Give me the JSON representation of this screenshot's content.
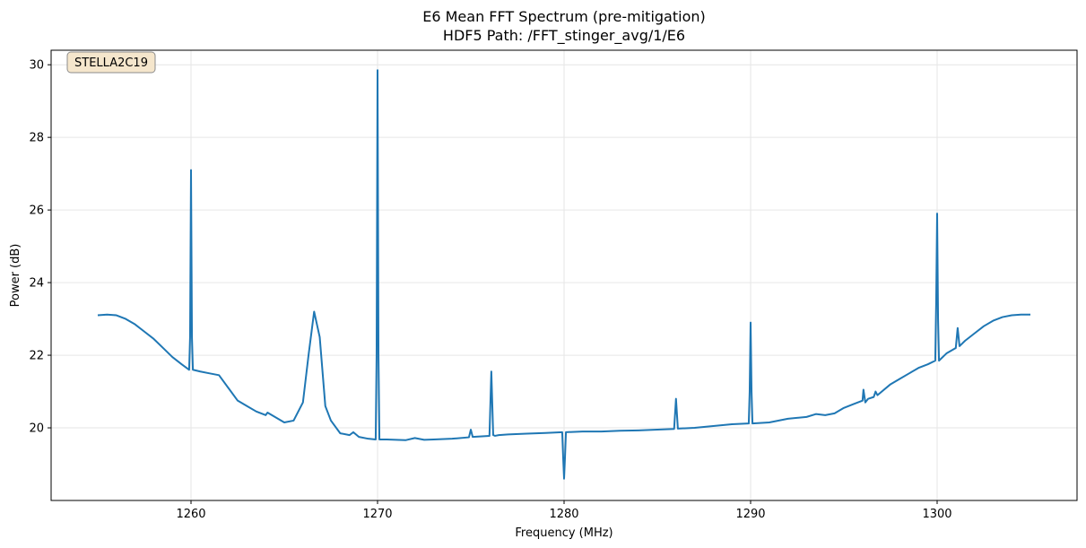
{
  "chart_data": {
    "type": "line",
    "title": "E6 Mean FFT Spectrum (pre-mitigation)",
    "subtitle": "HDF5 Path: /FFT_stinger_avg/1/E6",
    "xlabel": "Frequency (MHz)",
    "ylabel": "Power (dB)",
    "xlim": [
      1252.5,
      1307.5
    ],
    "ylim": [
      18.0,
      30.4
    ],
    "xticks": [
      1260,
      1270,
      1280,
      1290,
      1300
    ],
    "yticks": [
      20,
      22,
      24,
      26,
      28,
      30
    ],
    "grid": true,
    "annotation": "STELLA2C19",
    "colors": {
      "line": "#1f77b4",
      "annotation_fill": "#f5e6cc",
      "annotation_border": "#8c8c8c",
      "grid": "#e6e6e6"
    },
    "series": [
      {
        "x": [
          1255.0,
          1255.5,
          1256.0,
          1256.5,
          1257.0,
          1257.5,
          1258.0,
          1258.5,
          1259.0,
          1259.5,
          1259.9,
          1259.95,
          1260.0,
          1260.05,
          1260.1,
          1260.5,
          1261.0,
          1261.5,
          1262.0,
          1262.5,
          1263.0,
          1263.5,
          1264.0,
          1264.1,
          1264.5,
          1265.0,
          1265.5,
          1266.0,
          1266.3,
          1266.6,
          1266.9,
          1267.2,
          1267.5,
          1268.0,
          1268.5,
          1268.7,
          1269.0,
          1269.5,
          1269.9,
          1269.95,
          1270.0,
          1270.05,
          1270.1,
          1270.5,
          1271.0,
          1271.5,
          1272.0,
          1272.5,
          1273.0,
          1274.0,
          1274.9,
          1275.0,
          1275.1,
          1276.0,
          1276.1,
          1276.2,
          1276.3,
          1276.5,
          1277.0,
          1278.0,
          1279.0,
          1279.9,
          1279.95,
          1280.0,
          1280.05,
          1280.1,
          1281.0,
          1282.0,
          1283.0,
          1284.0,
          1285.0,
          1285.9,
          1286.0,
          1286.1,
          1287.0,
          1288.0,
          1289.0,
          1289.9,
          1289.95,
          1290.0,
          1290.05,
          1290.1,
          1291.0,
          1292.0,
          1293.0,
          1293.5,
          1294.0,
          1294.5,
          1295.0,
          1295.5,
          1296.0,
          1296.05,
          1296.15,
          1296.3,
          1296.6,
          1296.7,
          1296.8,
          1297.5,
          1298.0,
          1298.5,
          1299.0,
          1299.5,
          1299.9,
          1299.95,
          1300.0,
          1300.05,
          1300.1,
          1300.5,
          1301.0,
          1301.1,
          1301.2,
          1301.5,
          1302.0,
          1302.5,
          1303.0,
          1303.5,
          1304.0,
          1304.5,
          1305.0
        ],
        "y": [
          23.1,
          23.12,
          23.1,
          23.0,
          22.85,
          22.65,
          22.45,
          22.2,
          21.95,
          21.75,
          21.6,
          22.5,
          27.1,
          22.5,
          21.6,
          21.55,
          21.5,
          21.45,
          21.1,
          20.75,
          20.6,
          20.45,
          20.35,
          20.42,
          20.3,
          20.15,
          20.2,
          20.7,
          22.0,
          23.2,
          22.5,
          20.6,
          20.2,
          19.85,
          19.8,
          19.88,
          19.75,
          19.7,
          19.68,
          22.0,
          29.85,
          22.0,
          19.68,
          19.68,
          19.67,
          19.66,
          19.72,
          19.67,
          19.68,
          19.7,
          19.74,
          19.95,
          19.75,
          19.78,
          21.55,
          19.8,
          19.78,
          19.8,
          19.82,
          19.84,
          19.86,
          19.88,
          19.2,
          18.6,
          19.2,
          19.88,
          19.9,
          19.9,
          19.92,
          19.93,
          19.95,
          19.97,
          20.8,
          19.98,
          20.0,
          20.05,
          20.1,
          20.12,
          21.0,
          22.9,
          21.0,
          20.12,
          20.15,
          20.25,
          20.3,
          20.38,
          20.35,
          20.4,
          20.55,
          20.65,
          20.75,
          21.05,
          20.7,
          20.8,
          20.85,
          21.0,
          20.9,
          21.2,
          21.35,
          21.5,
          21.65,
          21.75,
          21.85,
          23.5,
          25.9,
          23.0,
          21.85,
          22.05,
          22.2,
          22.75,
          22.25,
          22.4,
          22.6,
          22.8,
          22.95,
          23.05,
          23.1,
          23.12,
          23.12
        ]
      }
    ]
  }
}
